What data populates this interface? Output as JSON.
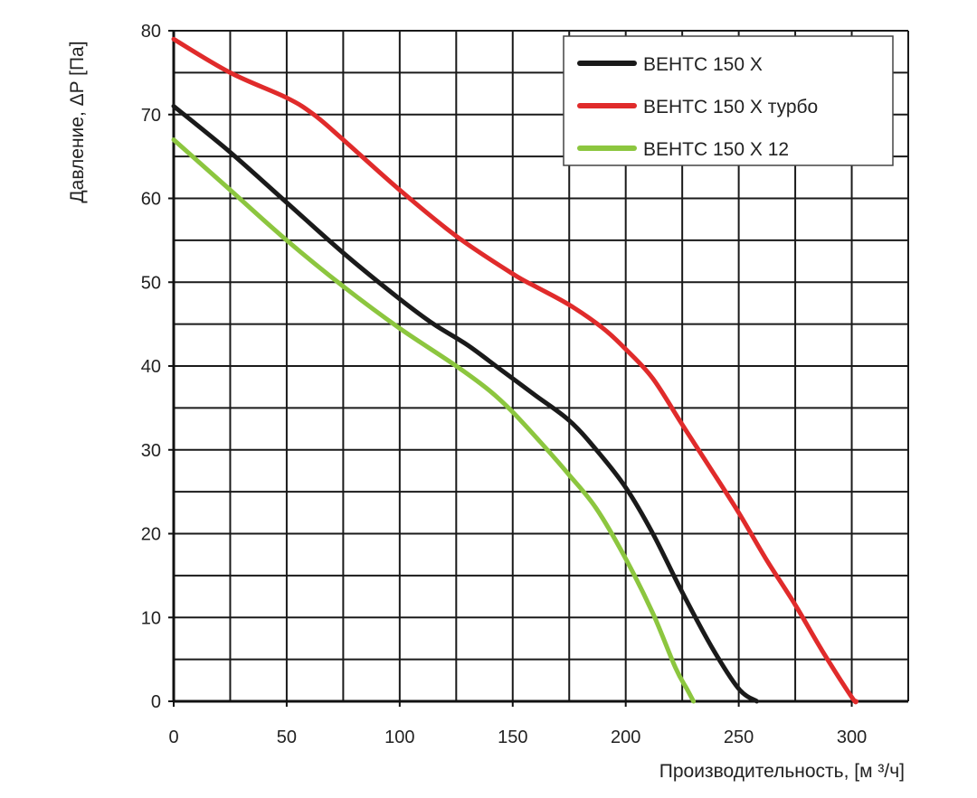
{
  "chart_data": {
    "type": "line",
    "title": "",
    "xlabel": "Производительность, [м ³/ч]",
    "ylabel": "Давление, ΔP [Па]",
    "xlim": [
      0,
      325
    ],
    "ylim": [
      0,
      80
    ],
    "x_ticks": [
      0,
      50,
      100,
      150,
      200,
      250,
      300
    ],
    "y_ticks": [
      0,
      10,
      20,
      30,
      40,
      50,
      60,
      70,
      80
    ],
    "x_tick_labels": [
      "0",
      "50",
      "100",
      "150",
      "200",
      "250",
      "300"
    ],
    "y_tick_labels": [
      "0",
      "10",
      "20",
      "30",
      "40",
      "50",
      "60",
      "70",
      "80"
    ],
    "grid": true,
    "legend_position": "top-right",
    "series": [
      {
        "name": "ВЕНТС 150 Х",
        "color": "#1a1a1a",
        "points": [
          [
            0,
            71
          ],
          [
            25,
            65.5
          ],
          [
            50,
            59.5
          ],
          [
            75,
            53.5
          ],
          [
            100,
            48
          ],
          [
            115,
            45
          ],
          [
            130,
            42.5
          ],
          [
            145,
            39.5
          ],
          [
            160,
            36.5
          ],
          [
            175,
            33.5
          ],
          [
            187,
            30
          ],
          [
            200,
            25.5
          ],
          [
            212,
            20
          ],
          [
            225,
            13
          ],
          [
            238,
            6.5
          ],
          [
            250,
            1.5
          ],
          [
            258,
            0
          ]
        ]
      },
      {
        "name": "ВЕНТС 150 Х турбо",
        "color": "#e02b2b",
        "points": [
          [
            0,
            79
          ],
          [
            25,
            75
          ],
          [
            50,
            72
          ],
          [
            62,
            70
          ],
          [
            75,
            67
          ],
          [
            100,
            61
          ],
          [
            125,
            55.5
          ],
          [
            150,
            51
          ],
          [
            160,
            49.5
          ],
          [
            175,
            47.3
          ],
          [
            190,
            44.5
          ],
          [
            200,
            42
          ],
          [
            212,
            38.5
          ],
          [
            225,
            33
          ],
          [
            237,
            28
          ],
          [
            250,
            22.5
          ],
          [
            262,
            17
          ],
          [
            275,
            11.5
          ],
          [
            287,
            6
          ],
          [
            300,
            0.5
          ],
          [
            302,
            0
          ]
        ]
      },
      {
        "name": "ВЕНТС 150 Х 12",
        "color": "#8cc63f",
        "points": [
          [
            0,
            67
          ],
          [
            25,
            61
          ],
          [
            50,
            55
          ],
          [
            75,
            49.5
          ],
          [
            100,
            44.5
          ],
          [
            125,
            40
          ],
          [
            140,
            37
          ],
          [
            150,
            34.5
          ],
          [
            162,
            31
          ],
          [
            175,
            27
          ],
          [
            187,
            23
          ],
          [
            200,
            17
          ],
          [
            212,
            10.5
          ],
          [
            222,
            4
          ],
          [
            227,
            1.5
          ],
          [
            230,
            0
          ]
        ]
      }
    ]
  }
}
